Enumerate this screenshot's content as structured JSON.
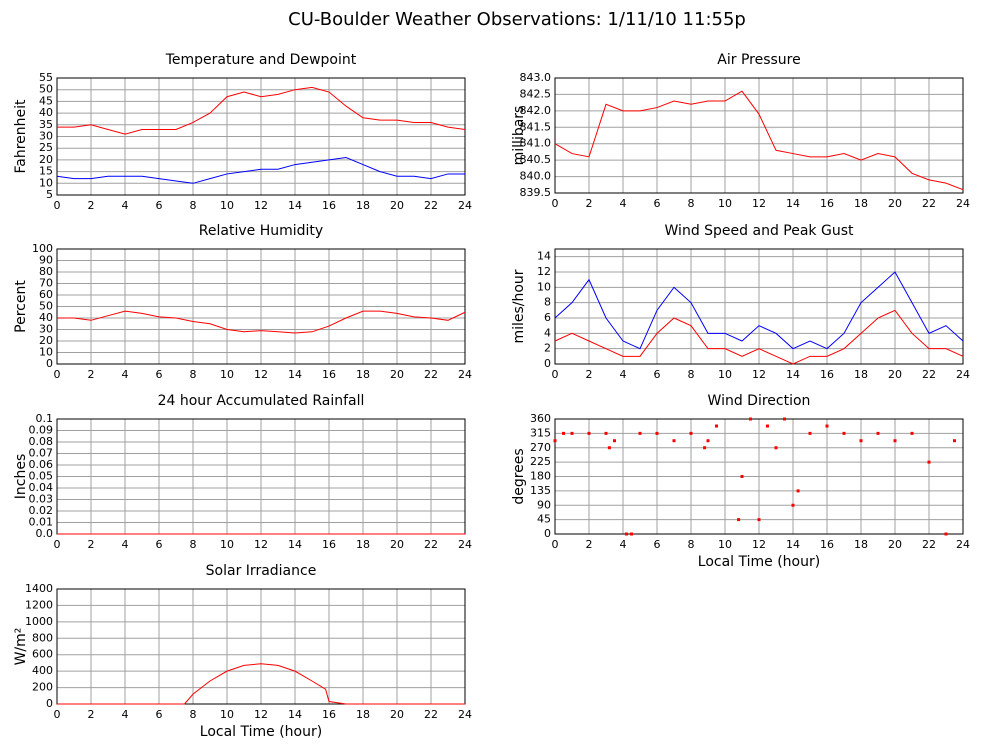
{
  "title": "CU-Boulder Weather Observations: 1/11/10 11:55p",
  "chart_data": [
    {
      "type": "line",
      "title": "Temperature and Dewpoint",
      "ylabel": "Fahrenheit",
      "x": [
        0,
        1,
        2,
        3,
        4,
        5,
        6,
        7,
        8,
        9,
        10,
        11,
        12,
        13,
        14,
        15,
        16,
        17,
        18,
        19,
        20,
        21,
        22,
        23,
        24
      ],
      "series": [
        {
          "color": "#ff0000",
          "values": [
            34,
            34,
            35,
            33,
            31,
            33,
            33,
            33,
            36,
            40,
            47,
            49,
            47,
            48,
            50,
            51,
            49,
            43,
            38,
            37,
            37,
            36,
            36,
            34,
            33
          ]
        },
        {
          "color": "#0000ff",
          "values": [
            13,
            12,
            12,
            13,
            13,
            13,
            12,
            11,
            10,
            12,
            14,
            15,
            16,
            16,
            18,
            19,
            20,
            21,
            18,
            15,
            13,
            13,
            12,
            14,
            14
          ]
        }
      ],
      "xlim": [
        0,
        24
      ],
      "xticks": [
        0,
        2,
        4,
        6,
        8,
        10,
        12,
        14,
        16,
        18,
        20,
        22,
        24
      ],
      "ylim": [
        5,
        55
      ],
      "yticks": [
        5,
        10,
        15,
        20,
        25,
        30,
        35,
        40,
        45,
        50,
        55
      ],
      "grid": true
    },
    {
      "type": "line",
      "title": "Air Pressure",
      "ylabel": "millibars",
      "x": [
        0,
        1,
        2,
        3,
        4,
        5,
        6,
        7,
        8,
        9,
        10,
        11,
        12,
        13,
        14,
        15,
        16,
        17,
        18,
        19,
        20,
        21,
        22,
        23,
        24
      ],
      "series": [
        {
          "color": "#ff0000",
          "values": [
            841.0,
            840.7,
            840.6,
            842.2,
            842.0,
            842.0,
            842.1,
            842.3,
            842.2,
            842.3,
            842.3,
            842.6,
            841.9,
            840.8,
            840.7,
            840.6,
            840.6,
            840.7,
            840.5,
            840.7,
            840.6,
            840.1,
            839.9,
            839.8,
            839.6
          ]
        }
      ],
      "xlim": [
        0,
        24
      ],
      "xticks": [
        0,
        2,
        4,
        6,
        8,
        10,
        12,
        14,
        16,
        18,
        20,
        22,
        24
      ],
      "ylim": [
        839.5,
        843.0
      ],
      "yticks": [
        839.5,
        {
          "value": 840,
          "label": "840.0"
        },
        840.5,
        {
          "value": 841,
          "label": "841.0"
        },
        841.5,
        {
          "value": 842,
          "label": "842.0"
        },
        842.5,
        {
          "value": 843,
          "label": "843.0"
        }
      ],
      "grid": true
    },
    {
      "type": "line",
      "title": "Relative Humidity",
      "ylabel": "Percent",
      "x": [
        0,
        1,
        2,
        3,
        4,
        5,
        6,
        7,
        8,
        9,
        10,
        11,
        12,
        13,
        14,
        15,
        16,
        17,
        18,
        19,
        20,
        21,
        22,
        23,
        24
      ],
      "series": [
        {
          "color": "#ff0000",
          "values": [
            40,
            40,
            38,
            42,
            46,
            44,
            41,
            40,
            37,
            35,
            30,
            28,
            29,
            28,
            27,
            28,
            33,
            40,
            46,
            46,
            44,
            41,
            40,
            38,
            45
          ]
        }
      ],
      "xlim": [
        0,
        24
      ],
      "xticks": [
        0,
        2,
        4,
        6,
        8,
        10,
        12,
        14,
        16,
        18,
        20,
        22,
        24
      ],
      "ylim": [
        0,
        100
      ],
      "yticks": [
        0,
        10,
        20,
        30,
        40,
        50,
        60,
        70,
        80,
        90,
        100
      ],
      "grid": true
    },
    {
      "type": "line",
      "title": "Wind Speed and Peak Gust",
      "ylabel": "miles/hour",
      "x": [
        0,
        1,
        2,
        3,
        4,
        5,
        6,
        7,
        8,
        9,
        10,
        11,
        12,
        13,
        14,
        15,
        16,
        17,
        18,
        19,
        20,
        21,
        22,
        23,
        24
      ],
      "series": [
        {
          "color": "#0000ff",
          "values": [
            6,
            8,
            11,
            6,
            3,
            2,
            7,
            10,
            8,
            4,
            4,
            3,
            5,
            4,
            2,
            3,
            2,
            4,
            8,
            10,
            12,
            8,
            4,
            5,
            3
          ]
        },
        {
          "color": "#ff0000",
          "values": [
            3,
            4,
            3,
            2,
            1,
            1,
            4,
            6,
            5,
            2,
            2,
            1,
            2,
            1,
            0,
            1,
            1,
            2,
            4,
            6,
            7,
            4,
            2,
            2,
            1
          ]
        }
      ],
      "xlim": [
        0,
        24
      ],
      "xticks": [
        0,
        2,
        4,
        6,
        8,
        10,
        12,
        14,
        16,
        18,
        20,
        22,
        24
      ],
      "ylim": [
        0,
        15
      ],
      "yticks": [
        0,
        2,
        4,
        6,
        8,
        10,
        12,
        14
      ],
      "grid": true
    },
    {
      "type": "line",
      "title": "24 hour Accumulated Rainfall",
      "ylabel": "Inches",
      "x": [
        0,
        24
      ],
      "series": [
        {
          "color": "#ff0000",
          "values": [
            0,
            0
          ]
        }
      ],
      "xlim": [
        0,
        24
      ],
      "xticks": [
        0,
        2,
        4,
        6,
        8,
        10,
        12,
        14,
        16,
        18,
        20,
        22,
        24
      ],
      "ylim": [
        0,
        0.1
      ],
      "yticks": [
        {
          "value": 0,
          "label": "0.0"
        },
        0.01,
        0.02,
        0.03,
        0.04,
        0.05,
        0.06,
        0.07,
        0.08,
        0.09,
        0.1
      ],
      "grid": true
    },
    {
      "type": "scatter",
      "title": "Wind Direction",
      "ylabel": "degrees",
      "xlabel": "Local Time (hour)",
      "x": [
        0,
        0.5,
        1,
        2,
        3,
        3.2,
        3.5,
        4.2,
        4.5,
        5,
        6,
        7,
        8,
        8.8,
        9,
        9.5,
        10.8,
        11,
        11.5,
        12,
        12.5,
        13,
        13.5,
        14,
        14.3,
        15,
        16,
        17,
        18,
        19,
        20,
        21,
        22,
        23,
        23.5
      ],
      "series": [
        {
          "color": "#ff0000",
          "values": [
            292,
            315,
            315,
            315,
            315,
            270,
            292,
            0,
            0,
            315,
            315,
            292,
            315,
            270,
            292,
            338,
            45,
            180,
            360,
            45,
            338,
            270,
            360,
            90,
            135,
            315,
            338,
            315,
            292,
            315,
            292,
            315,
            225,
            0,
            292
          ]
        }
      ],
      "xlim": [
        0,
        24
      ],
      "xticks": [
        0,
        2,
        4,
        6,
        8,
        10,
        12,
        14,
        16,
        18,
        20,
        22,
        24
      ],
      "ylim": [
        0,
        360
      ],
      "yticks": [
        0,
        45,
        90,
        135,
        180,
        225,
        270,
        315,
        360
      ],
      "grid": true
    },
    {
      "type": "line",
      "title": "Solar Irradiance",
      "ylabel": "W/m²",
      "xlabel": "Local Time (hour)",
      "x": [
        0,
        1,
        2,
        3,
        4,
        5,
        6,
        7,
        7.5,
        8,
        9,
        10,
        11,
        12,
        13,
        14,
        15,
        15.8,
        16,
        17,
        18,
        19,
        20,
        21,
        22,
        23,
        24
      ],
      "series": [
        {
          "color": "#ff0000",
          "values": [
            0,
            0,
            0,
            0,
            0,
            0,
            0,
            0,
            0,
            120,
            280,
            400,
            470,
            490,
            470,
            400,
            280,
            180,
            30,
            0,
            0,
            0,
            0,
            0,
            0,
            0,
            0
          ]
        }
      ],
      "xlim": [
        0,
        24
      ],
      "xticks": [
        0,
        2,
        4,
        6,
        8,
        10,
        12,
        14,
        16,
        18,
        20,
        22,
        24
      ],
      "ylim": [
        0,
        1400
      ],
      "yticks": [
        0,
        200,
        400,
        600,
        800,
        1000,
        1200,
        1400
      ],
      "grid": true
    }
  ]
}
